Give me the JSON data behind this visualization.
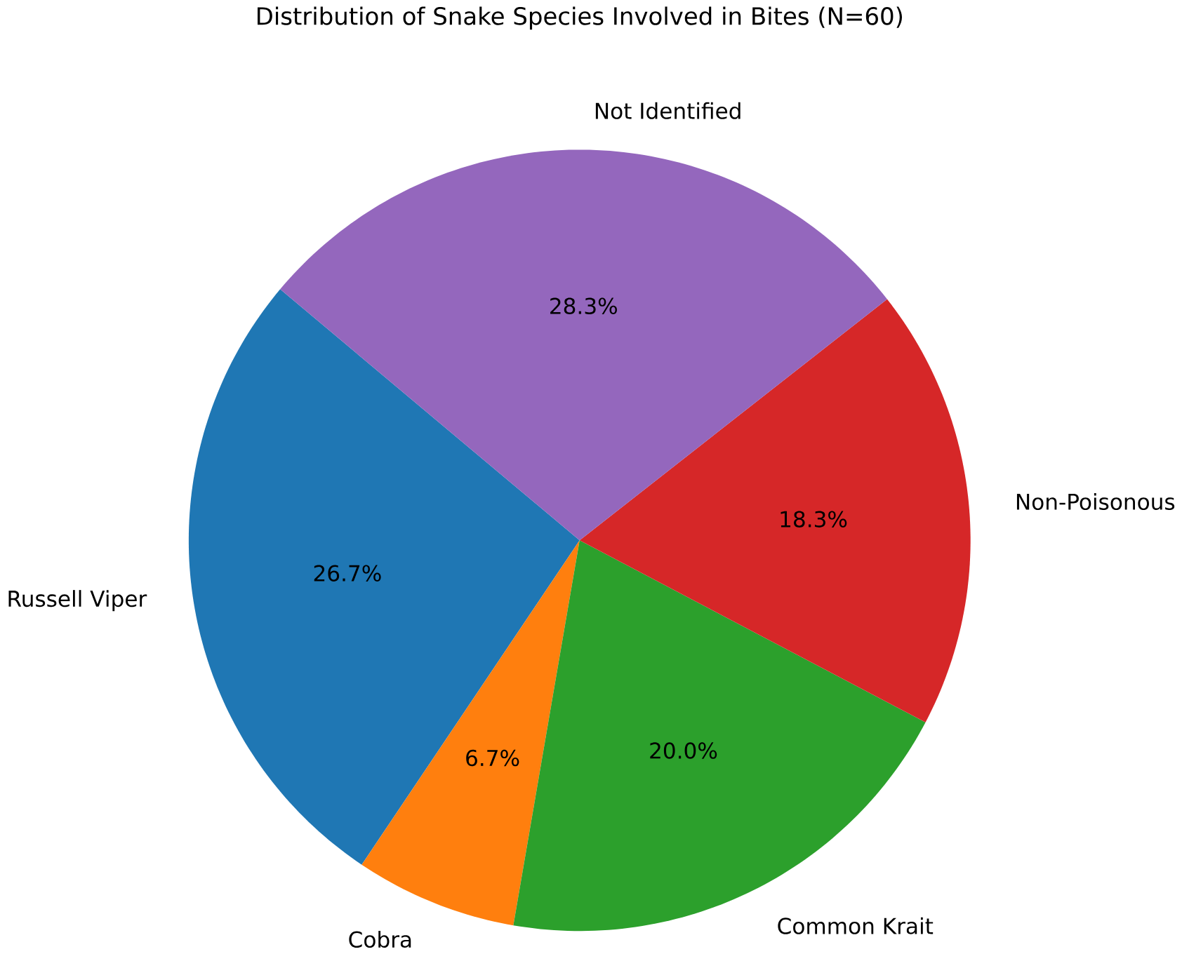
{
  "chart_data": {
    "type": "pie",
    "title": "Distribution of Snake Species Involved in Bites (N=60)",
    "categories": [
      "Russell Viper",
      "Cobra",
      "Common Krait",
      "Non-Poisonous",
      "Not Identified"
    ],
    "values": [
      26.7,
      6.7,
      20.0,
      18.3,
      28.3
    ],
    "value_labels": [
      "26.7%",
      "6.7%",
      "20.0%",
      "18.3%",
      "28.3%"
    ],
    "colors": [
      "#1f77b4",
      "#ff7f0e",
      "#2ca02c",
      "#d62728",
      "#9467bd"
    ]
  }
}
